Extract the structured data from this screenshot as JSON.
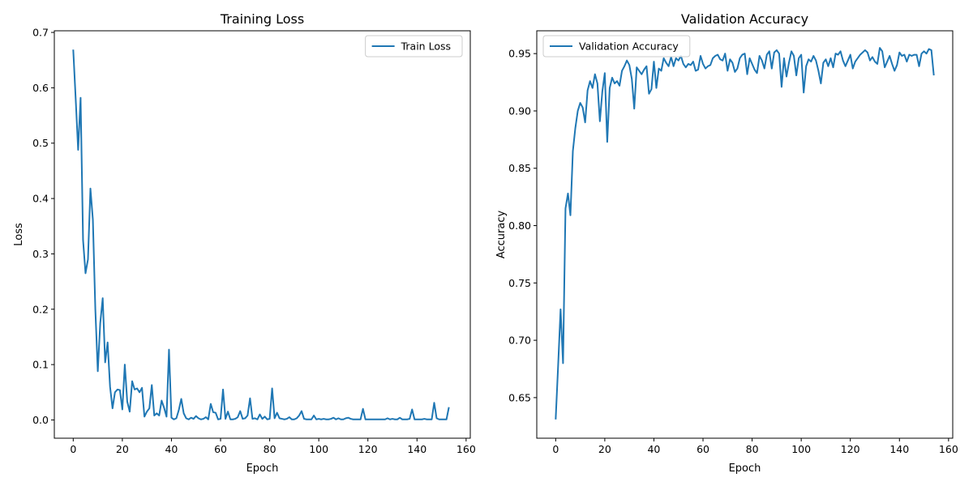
{
  "chart_data": [
    {
      "type": "line",
      "title": "Training Loss",
      "xlabel": "Epoch",
      "ylabel": "Loss",
      "xlim": [
        -7.7,
        161.7
      ],
      "ylim": [
        -0.033,
        0.703
      ],
      "xticks": [
        0,
        20,
        40,
        60,
        80,
        100,
        120,
        140,
        160
      ],
      "yticks": [
        0.0,
        0.1,
        0.2,
        0.3,
        0.4,
        0.5,
        0.6,
        0.7
      ],
      "ytick_labels": [
        "0.0",
        "0.1",
        "0.2",
        "0.3",
        "0.4",
        "0.5",
        "0.6",
        "0.7"
      ],
      "grid": false,
      "legend_position": "top-right",
      "series": [
        {
          "name": "Train Loss",
          "color": "#1f77b4",
          "values": [
            0.669,
            0.58,
            0.488,
            0.582,
            0.325,
            0.265,
            0.29,
            0.418,
            0.362,
            0.2,
            0.088,
            0.175,
            0.22,
            0.104,
            0.14,
            0.06,
            0.021,
            0.05,
            0.055,
            0.054,
            0.019,
            0.1,
            0.033,
            0.015,
            0.07,
            0.055,
            0.057,
            0.05,
            0.058,
            0.006,
            0.015,
            0.021,
            0.063,
            0.008,
            0.012,
            0.008,
            0.035,
            0.022,
            0.006,
            0.127,
            0.004,
            0.001,
            0.003,
            0.018,
            0.038,
            0.012,
            0.003,
            0.001,
            0.004,
            0.002,
            0.007,
            0.003,
            0.001,
            0.002,
            0.005,
            0.001,
            0.029,
            0.014,
            0.013,
            0.001,
            0.002,
            0.055,
            0.002,
            0.015,
            0.001,
            0.001,
            0.002,
            0.005,
            0.016,
            0.002,
            0.003,
            0.008,
            0.039,
            0.002,
            0.003,
            0.001,
            0.01,
            0.002,
            0.006,
            0.001,
            0.002,
            0.057,
            0.003,
            0.013,
            0.003,
            0.002,
            0.001,
            0.002,
            0.005,
            0.001,
            0.001,
            0.003,
            0.008,
            0.016,
            0.002,
            0.001,
            0.001,
            0.001,
            0.008,
            0.001,
            0.002,
            0.001,
            0.002,
            0.001,
            0.001,
            0.002,
            0.004,
            0.001,
            0.003,
            0.001,
            0.001,
            0.003,
            0.004,
            0.002,
            0.001,
            0.001,
            0.001,
            0.001,
            0.02,
            0.001,
            0.001,
            0.001,
            0.001,
            0.001,
            0.001,
            0.001,
            0.001,
            0.001,
            0.003,
            0.001,
            0.002,
            0.001,
            0.001,
            0.004,
            0.001,
            0.001,
            0.001,
            0.002,
            0.019,
            0.001,
            0.001,
            0.001,
            0.001,
            0.002,
            0.001,
            0.001,
            0.001,
            0.031,
            0.003,
            0.001,
            0.001,
            0.001,
            0.001,
            0.023
          ]
        }
      ]
    },
    {
      "type": "line",
      "title": "Validation Accuracy",
      "xlabel": "Epoch",
      "ylabel": "Accuracy",
      "xlim": [
        -7.7,
        161.7
      ],
      "ylim": [
        0.6146,
        0.9699
      ],
      "xticks": [
        0,
        20,
        40,
        60,
        80,
        100,
        120,
        140,
        160
      ],
      "yticks": [
        0.65,
        0.7,
        0.75,
        0.8,
        0.85,
        0.9,
        0.95
      ],
      "ytick_labels": [
        "0.65",
        "0.70",
        "0.75",
        "0.80",
        "0.85",
        "0.90",
        "0.95"
      ],
      "grid": false,
      "legend_position": "top-left",
      "series": [
        {
          "name": "Validation Accuracy",
          "color": "#1f77b4",
          "values": [
            0.631,
            0.678,
            0.727,
            0.68,
            0.815,
            0.828,
            0.809,
            0.865,
            0.885,
            0.9,
            0.907,
            0.903,
            0.89,
            0.918,
            0.926,
            0.92,
            0.932,
            0.924,
            0.891,
            0.917,
            0.933,
            0.873,
            0.92,
            0.929,
            0.924,
            0.926,
            0.922,
            0.935,
            0.939,
            0.944,
            0.94,
            0.928,
            0.902,
            0.938,
            0.935,
            0.932,
            0.936,
            0.939,
            0.915,
            0.919,
            0.943,
            0.92,
            0.937,
            0.935,
            0.946,
            0.942,
            0.939,
            0.947,
            0.939,
            0.946,
            0.944,
            0.948,
            0.941,
            0.938,
            0.941,
            0.94,
            0.943,
            0.935,
            0.936,
            0.948,
            0.941,
            0.937,
            0.939,
            0.94,
            0.946,
            0.948,
            0.949,
            0.945,
            0.944,
            0.95,
            0.935,
            0.945,
            0.942,
            0.934,
            0.937,
            0.946,
            0.949,
            0.95,
            0.932,
            0.946,
            0.941,
            0.936,
            0.933,
            0.948,
            0.944,
            0.937,
            0.949,
            0.952,
            0.937,
            0.951,
            0.953,
            0.95,
            0.921,
            0.946,
            0.93,
            0.942,
            0.952,
            0.948,
            0.931,
            0.946,
            0.949,
            0.916,
            0.939,
            0.945,
            0.943,
            0.948,
            0.944,
            0.935,
            0.924,
            0.942,
            0.945,
            0.939,
            0.946,
            0.938,
            0.95,
            0.949,
            0.952,
            0.944,
            0.939,
            0.944,
            0.949,
            0.937,
            0.943,
            0.946,
            0.949,
            0.951,
            0.953,
            0.951,
            0.944,
            0.947,
            0.943,
            0.941,
            0.955,
            0.952,
            0.938,
            0.943,
            0.948,
            0.941,
            0.935,
            0.94,
            0.951,
            0.948,
            0.949,
            0.943,
            0.949,
            0.948,
            0.949,
            0.949,
            0.939,
            0.95,
            0.952,
            0.95,
            0.954,
            0.953,
            0.931
          ]
        }
      ]
    }
  ]
}
